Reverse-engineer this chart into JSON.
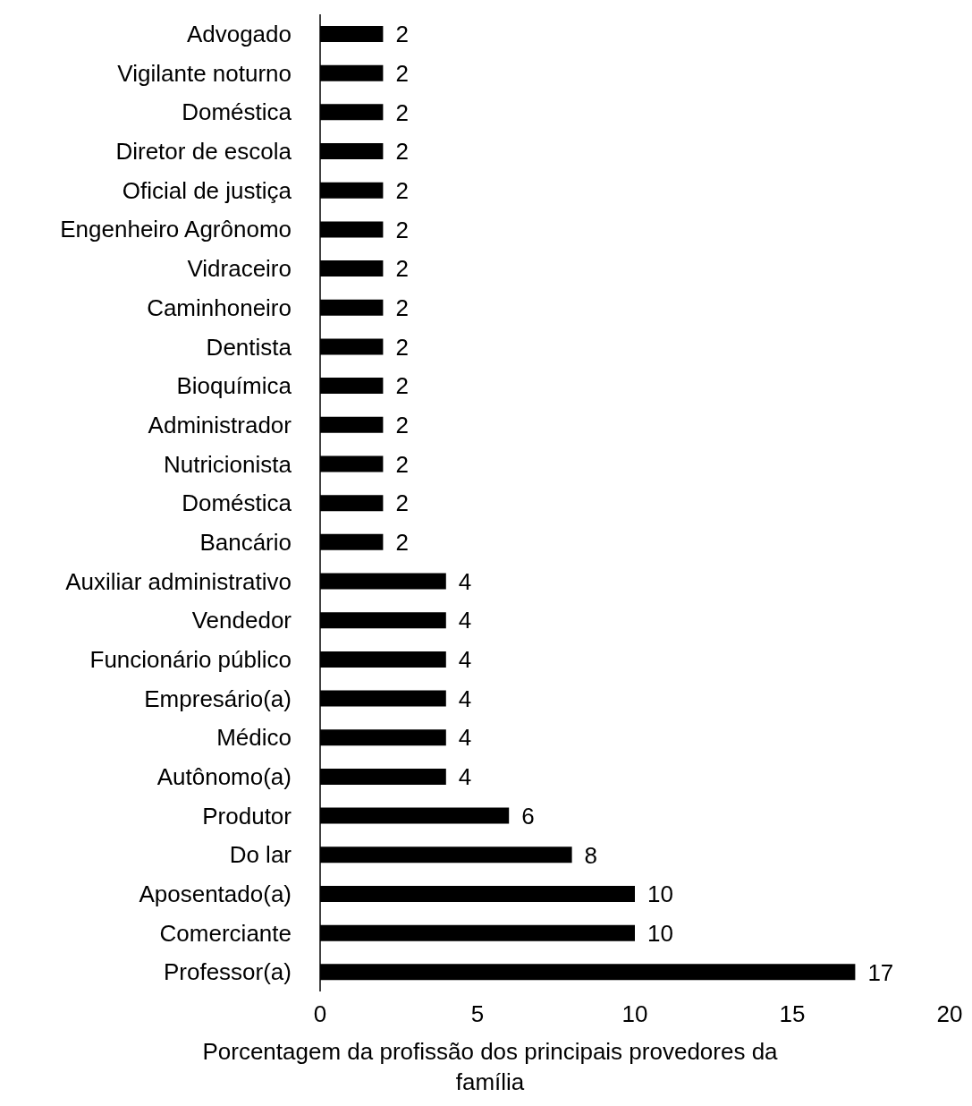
{
  "chart_data": {
    "type": "bar",
    "orientation": "horizontal",
    "xlabel": "Porcentagem da profissão dos principais provedores da família",
    "categories": [
      "Advogado",
      "Vigilante noturno",
      "Doméstica",
      "Diretor de escola",
      "Oficial de justiça",
      "Engenheiro Agrônomo",
      "Vidraceiro",
      "Caminhoneiro",
      "Dentista",
      "Bioquímica",
      "Administrador",
      "Nutricionista",
      "Doméstica",
      "Bancário",
      "Auxiliar administrativo",
      "Vendedor",
      "Funcionário público",
      "Empresário(a)",
      "Médico",
      "Autônomo(a)",
      "Produtor",
      "Do lar",
      "Aposentado(a)",
      "Comerciante",
      "Professor(a)"
    ],
    "values": [
      2,
      2,
      2,
      2,
      2,
      2,
      2,
      2,
      2,
      2,
      2,
      2,
      2,
      2,
      4,
      4,
      4,
      4,
      4,
      4,
      6,
      8,
      10,
      10,
      17
    ],
    "color": "#000000",
    "xlim": [
      0,
      20
    ],
    "xticks": [
      0,
      5,
      10,
      15,
      20
    ],
    "data_labels": true,
    "grid": false,
    "legend": false
  }
}
